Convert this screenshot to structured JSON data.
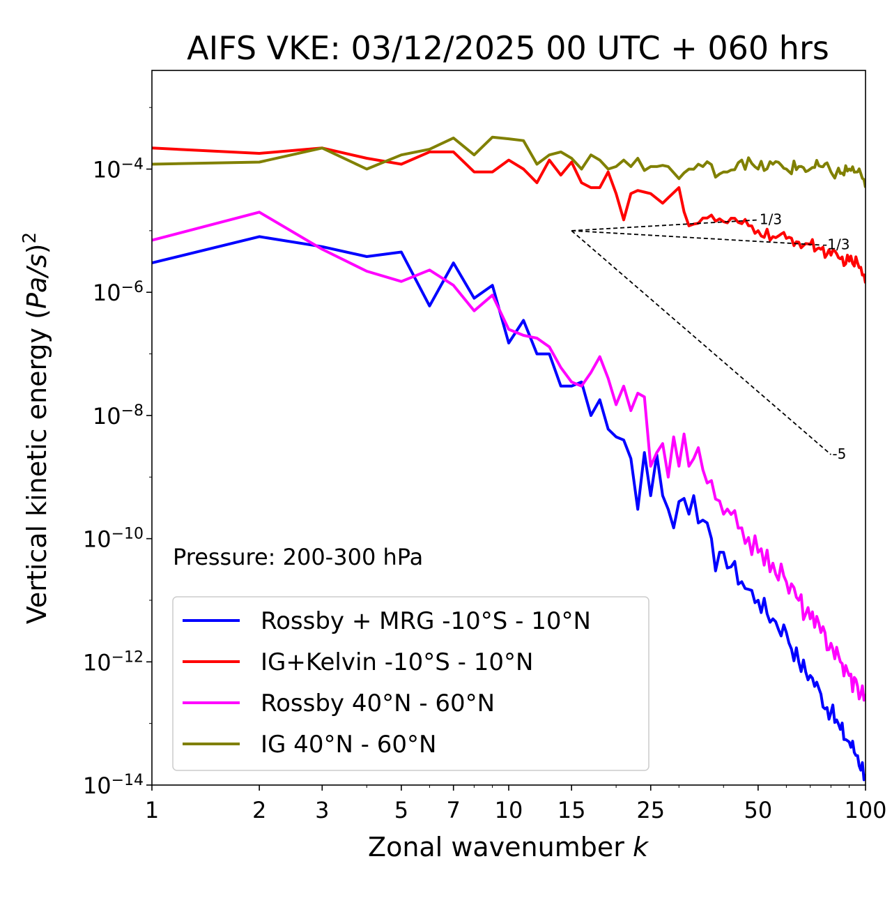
{
  "chart_data": {
    "type": "line",
    "title": "AIFS VKE: 03/12/2025 00 UTC + 060 hrs",
    "xlabel": "Zonal wavenumber ",
    "xlabel_var": "k",
    "ylabel": "Vertical kinetic energy (",
    "ylabel_var": "Pa/s",
    "ylabel_close": ")",
    "ylabel_exp": "2",
    "xscale": "log",
    "yscale": "log",
    "xlim": [
      1,
      100
    ],
    "ylim": [
      1e-14,
      0.004
    ],
    "x_ticks": [
      1,
      2,
      3,
      5,
      7,
      10,
      15,
      25,
      50,
      100
    ],
    "x_tick_labels": [
      "1",
      "2",
      "3",
      "5",
      "7",
      "10",
      "15",
      "25",
      "50",
      "100"
    ],
    "y_ticks": [
      -14,
      -12,
      -10,
      -8,
      -6,
      -4
    ],
    "y_tick_base": "10",
    "y_tick_exps": [
      "−14",
      "−12",
      "−10",
      "−8",
      "−6",
      "−4"
    ],
    "annotation": "Pressure: 200-300 hPa",
    "legend_position": "lower-left",
    "reference_slopes": [
      {
        "label": "1/3",
        "x_start": 15,
        "y_start": 1e-05,
        "x_end": 50,
        "slope": 0.3333
      },
      {
        "label": "-1/3",
        "x_start": 15,
        "y_start": 1e-05,
        "x_end": 75,
        "slope": -0.3333
      },
      {
        "label": "-5",
        "x_start": 15,
        "y_start": 1e-05,
        "x_end": 80,
        "slope": -5
      }
    ],
    "series": [
      {
        "name": "Rossby + MRG -10°S - 10°N",
        "color": "#0000ff",
        "anchors": [
          [
            1,
            3e-06
          ],
          [
            2,
            8e-06
          ],
          [
            3,
            5.5e-06
          ],
          [
            4,
            3.8e-06
          ],
          [
            5,
            4.5e-06
          ],
          [
            6,
            6e-07
          ],
          [
            7,
            3e-06
          ],
          [
            8,
            8e-07
          ],
          [
            9,
            1.3e-06
          ],
          [
            10,
            1.5e-07
          ],
          [
            11,
            3.5e-07
          ],
          [
            12,
            1e-07
          ],
          [
            13,
            1e-07
          ],
          [
            14,
            3e-08
          ],
          [
            15,
            3e-08
          ],
          [
            16,
            3.5e-08
          ],
          [
            17,
            1e-08
          ],
          [
            18,
            1.8e-08
          ],
          [
            19,
            6e-09
          ],
          [
            20,
            4.5e-09
          ],
          [
            21,
            4e-09
          ],
          [
            22,
            2e-09
          ],
          [
            23,
            3e-10
          ],
          [
            24,
            2.5e-09
          ],
          [
            25,
            5e-10
          ],
          [
            26,
            2.3e-09
          ],
          [
            27,
            5e-10
          ],
          [
            28,
            3e-10
          ],
          [
            29,
            1.5e-10
          ],
          [
            30,
            4e-10
          ],
          [
            31,
            4.5e-10
          ],
          [
            32,
            2.5e-10
          ],
          [
            33,
            5e-10
          ],
          [
            34,
            1.8e-10
          ],
          [
            35,
            2e-10
          ],
          [
            36,
            1.8e-10
          ],
          [
            38,
            3e-11
          ],
          [
            40,
            6e-11
          ],
          [
            45,
            2e-11
          ],
          [
            50,
            1e-11
          ],
          [
            55,
            5e-12
          ],
          [
            60,
            3e-12
          ],
          [
            65,
            1e-12
          ],
          [
            70,
            6e-13
          ],
          [
            75,
            3e-13
          ],
          [
            80,
            1.5e-13
          ],
          [
            85,
            8e-14
          ],
          [
            90,
            5e-14
          ],
          [
            95,
            3e-14
          ],
          [
            100,
            1.5e-14
          ]
        ],
        "noise": 0.18
      },
      {
        "name": "IG+Kelvin -10°S - 10°N",
        "color": "#ff0000",
        "anchors": [
          [
            1,
            0.00022
          ],
          [
            2,
            0.00018
          ],
          [
            3,
            0.00022
          ],
          [
            4,
            0.00015
          ],
          [
            5,
            0.00012
          ],
          [
            6,
            0.00019
          ],
          [
            7,
            0.00019
          ],
          [
            8,
            9e-05
          ],
          [
            9,
            9e-05
          ],
          [
            10,
            0.00014
          ],
          [
            11,
            0.0001
          ],
          [
            12,
            6e-05
          ],
          [
            13,
            0.00014
          ],
          [
            14,
            8e-05
          ],
          [
            15,
            0.00013
          ],
          [
            16,
            6e-05
          ],
          [
            17,
            5e-05
          ],
          [
            18,
            5e-05
          ],
          [
            19,
            9e-05
          ],
          [
            20,
            4e-05
          ],
          [
            21,
            1.5e-05
          ],
          [
            22,
            4e-05
          ],
          [
            23,
            4.5e-05
          ],
          [
            25,
            4e-05
          ],
          [
            27,
            2.8e-05
          ],
          [
            30,
            5e-05
          ],
          [
            32,
            1.2e-05
          ],
          [
            35,
            1.6e-05
          ],
          [
            40,
            1.4e-05
          ],
          [
            45,
            1.3e-05
          ],
          [
            50,
            1e-05
          ],
          [
            55,
            8e-06
          ],
          [
            60,
            7.5e-06
          ],
          [
            65,
            6.5e-06
          ],
          [
            70,
            6e-06
          ],
          [
            75,
            5e-06
          ],
          [
            80,
            4e-06
          ],
          [
            85,
            3.5e-06
          ],
          [
            90,
            3.2e-06
          ],
          [
            95,
            3e-06
          ],
          [
            100,
            1.4e-06
          ]
        ],
        "noise": 0.1
      },
      {
        "name": "Rossby 40°N - 60°N",
        "color": "#ff00ff",
        "anchors": [
          [
            1,
            7e-06
          ],
          [
            2,
            2e-05
          ],
          [
            3,
            5e-06
          ],
          [
            4,
            2.2e-06
          ],
          [
            5,
            1.5e-06
          ],
          [
            6,
            2.3e-06
          ],
          [
            7,
            1.3e-06
          ],
          [
            8,
            5e-07
          ],
          [
            9,
            9e-07
          ],
          [
            10,
            2.5e-07
          ],
          [
            11,
            2e-07
          ],
          [
            12,
            1.8e-07
          ],
          [
            13,
            1.3e-07
          ],
          [
            14,
            6e-08
          ],
          [
            15,
            3.5e-08
          ],
          [
            16,
            3e-08
          ],
          [
            17,
            5e-08
          ],
          [
            18,
            9e-08
          ],
          [
            19,
            4e-08
          ],
          [
            20,
            1.5e-08
          ],
          [
            21,
            3e-08
          ],
          [
            22,
            1.2e-08
          ],
          [
            23,
            2.3e-08
          ],
          [
            24,
            2e-08
          ],
          [
            25,
            1.5e-09
          ],
          [
            26,
            2.5e-09
          ],
          [
            27,
            3.5e-09
          ],
          [
            28,
            1e-09
          ],
          [
            29,
            4.5e-09
          ],
          [
            30,
            1.5e-09
          ],
          [
            31,
            5e-09
          ],
          [
            32,
            1.5e-09
          ],
          [
            33,
            2e-09
          ],
          [
            34,
            3e-09
          ],
          [
            36,
            8e-10
          ],
          [
            40,
            2.5e-10
          ],
          [
            45,
            1.5e-10
          ],
          [
            50,
            6e-11
          ],
          [
            55,
            4e-11
          ],
          [
            60,
            2e-11
          ],
          [
            65,
            1e-11
          ],
          [
            70,
            5e-12
          ],
          [
            75,
            3e-12
          ],
          [
            80,
            2e-12
          ],
          [
            85,
            1e-12
          ],
          [
            90,
            6e-13
          ],
          [
            95,
            4e-13
          ],
          [
            100,
            3e-13
          ]
        ],
        "noise": 0.2
      },
      {
        "name": "IG 40°N - 60°N",
        "color": "#808000",
        "anchors": [
          [
            1,
            0.00012
          ],
          [
            2,
            0.00013
          ],
          [
            3,
            0.00022
          ],
          [
            4,
            0.0001
          ],
          [
            5,
            0.00017
          ],
          [
            6,
            0.00021
          ],
          [
            7,
            0.00032
          ],
          [
            8,
            0.00017
          ],
          [
            9,
            0.00033
          ],
          [
            10,
            0.00031
          ],
          [
            11,
            0.00029
          ],
          [
            12,
            0.00012
          ],
          [
            13,
            0.00017
          ],
          [
            14,
            0.00019
          ],
          [
            15,
            0.00015
          ],
          [
            16,
            0.0001
          ],
          [
            17,
            0.00017
          ],
          [
            18,
            0.00014
          ],
          [
            19,
            0.0001
          ],
          [
            20,
            0.00011
          ],
          [
            21,
            0.00014
          ],
          [
            22,
            0.00011
          ],
          [
            23,
            0.00015
          ],
          [
            24,
            9.5e-05
          ],
          [
            25,
            0.00011
          ],
          [
            26,
            0.00011
          ],
          [
            27,
            0.000115
          ],
          [
            28,
            0.00011
          ],
          [
            30,
            7e-05
          ],
          [
            32,
            0.0001
          ],
          [
            35,
            0.00011
          ],
          [
            40,
            9e-05
          ],
          [
            45,
            0.00014
          ],
          [
            50,
            0.0001
          ],
          [
            55,
            0.00012
          ],
          [
            60,
            0.0001
          ],
          [
            65,
            0.00011
          ],
          [
            70,
            0.0001
          ],
          [
            75,
            0.00011
          ],
          [
            80,
            9e-05
          ],
          [
            85,
            8.5e-05
          ],
          [
            90,
            0.0001
          ],
          [
            95,
            9e-05
          ],
          [
            100,
            5e-05
          ]
        ],
        "noise": 0.12
      }
    ]
  }
}
